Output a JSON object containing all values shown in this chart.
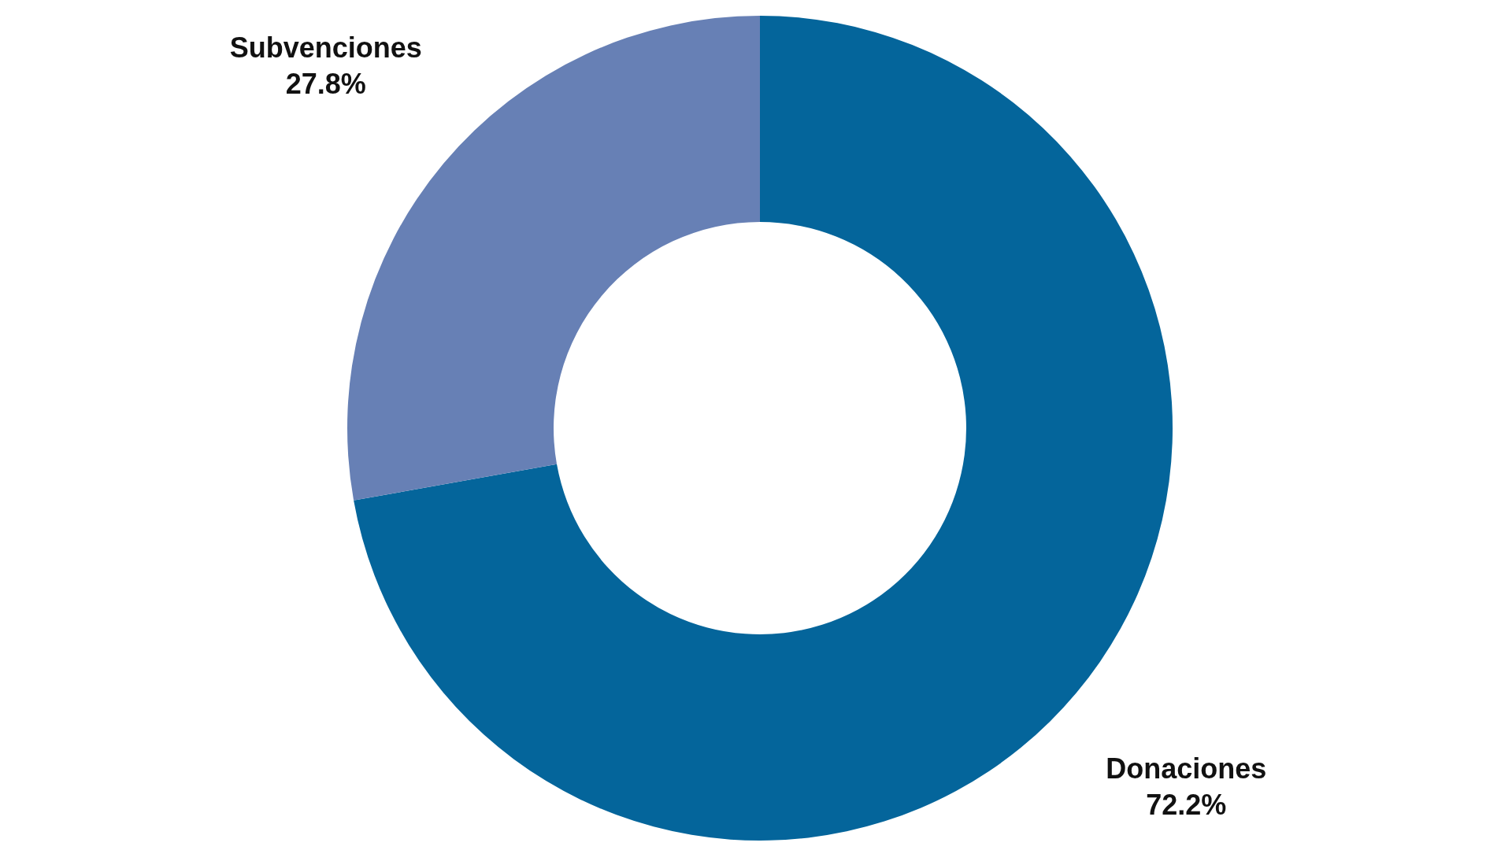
{
  "chart_data": {
    "type": "donut",
    "categories": [
      "Donaciones",
      "Subvenciones"
    ],
    "values": [
      72.2,
      27.8
    ],
    "colors": [
      "#04659b",
      "#6780b5"
    ],
    "value_labels": [
      "72.2%",
      "27.8%"
    ],
    "legend": false
  }
}
